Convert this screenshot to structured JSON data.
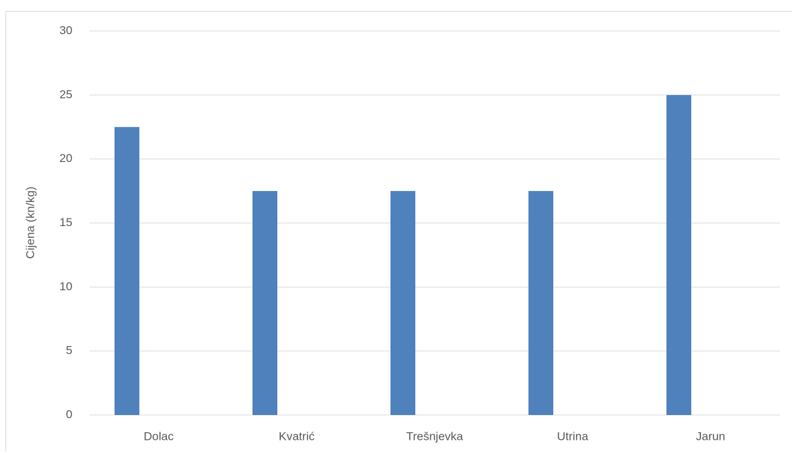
{
  "chart_data": {
    "type": "bar",
    "y_label": "Cijena (kn/kg)",
    "categories": [
      "Dolac",
      "Kvatrić",
      "Trešnjevka",
      "Utrina",
      "Jarun"
    ],
    "values": [
      22.5,
      17.5,
      17.5,
      17.5,
      25
    ],
    "color": "#4f81bd",
    "ylim": [
      0,
      30
    ],
    "yticks": [
      0,
      5,
      10,
      15,
      20,
      25,
      30
    ],
    "grid": true
  }
}
